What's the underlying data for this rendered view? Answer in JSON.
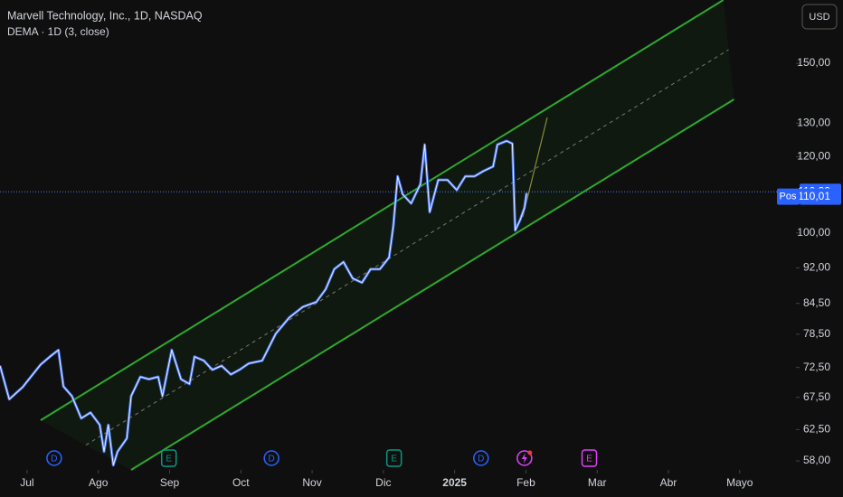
{
  "chart_data": {
    "type": "line",
    "title": "Marvell Technology, Inc., 1D, NASDAQ",
    "subtitle": "DEMA · 1D (3, close)",
    "currency": "USD",
    "color": "#4a7dff",
    "log_scale": true,
    "x": [
      6.62,
      6.75,
      6.94,
      7.19,
      7.32,
      7.44,
      7.51,
      7.63,
      7.76,
      7.89,
      8.02,
      8.08,
      8.14,
      8.21,
      8.27,
      8.4,
      8.46,
      8.59,
      8.71,
      8.84,
      8.9,
      9.03,
      9.16,
      9.28,
      9.35,
      9.48,
      9.6,
      9.73,
      9.86,
      9.98,
      10.11,
      10.3,
      10.49,
      10.68,
      10.87,
      11.06,
      11.19,
      11.31,
      11.44,
      11.57,
      11.7,
      11.82,
      11.95,
      12.08,
      12.14,
      12.2,
      12.27,
      12.39,
      12.52,
      12.58,
      12.65,
      12.77,
      12.9,
      13.03,
      13.15,
      13.28,
      13.41,
      13.54,
      13.6,
      13.73,
      13.81,
      13.85,
      13.92,
      13.98,
      14.01
    ],
    "values": [
      72.8,
      67.2,
      69.2,
      73.0,
      74.4,
      75.6,
      69.3,
      67.7,
      64.2,
      65.1,
      63.2,
      59.3,
      63.2,
      57.4,
      59.3,
      61.2,
      67.7,
      70.9,
      70.5,
      70.9,
      67.7,
      75.6,
      70.5,
      69.7,
      74.4,
      73.7,
      72.1,
      72.8,
      71.3,
      72.1,
      73.2,
      73.7,
      78.6,
      81.7,
      83.8,
      84.8,
      87.4,
      91.7,
      93.3,
      89.7,
      88.8,
      91.7,
      91.7,
      94.3,
      101.7,
      114.5,
      109.7,
      107.3,
      112.4,
      123.5,
      105.1,
      113.5,
      113.5,
      110.8,
      114.5,
      114.5,
      116.0,
      117.2,
      123.5,
      124.6,
      123.8,
      100.6,
      103.2,
      106.2,
      110.01
    ],
    "xlim": [
      6.62,
      17.79
    ],
    "ylim": [
      56.76,
      174.5
    ],
    "xticks": [
      {
        "value": 7,
        "label": "Jul"
      },
      {
        "value": 8,
        "label": "Ago"
      },
      {
        "value": 9,
        "label": "Sep"
      },
      {
        "value": 10,
        "label": "Oct"
      },
      {
        "value": 11,
        "label": "Nov"
      },
      {
        "value": 12,
        "label": "Dic"
      },
      {
        "value": 13,
        "label": "2025"
      },
      {
        "value": 14,
        "label": "Feb"
      },
      {
        "value": 15,
        "label": "Mar"
      },
      {
        "value": 16,
        "label": "Abr"
      },
      {
        "value": 17,
        "label": "Mayo"
      }
    ],
    "yticks": [
      {
        "value": 58,
        "label": "58,00"
      },
      {
        "value": 62.5,
        "label": "62,50"
      },
      {
        "value": 67.5,
        "label": "67,50"
      },
      {
        "value": 72.5,
        "label": "72,50"
      },
      {
        "value": 78.5,
        "label": "78,50"
      },
      {
        "value": 84.5,
        "label": "84,50"
      },
      {
        "value": 92,
        "label": "92,00"
      },
      {
        "value": 100,
        "label": "100,00"
      },
      {
        "value": 120,
        "label": "120,00"
      },
      {
        "value": 130,
        "label": "130,00"
      },
      {
        "value": 150,
        "label": "150,00"
      }
    ],
    "last_price": {
      "value": 110.33,
      "label": "110,33"
    },
    "indicator_price": {
      "value": 110.01,
      "label": "110,01",
      "tag": "Pos"
    },
    "channel": {
      "color": "#2ea82e",
      "upper": {
        "x": [
          7.19,
          16.77
        ],
        "values": [
          63.9,
          174.5
        ]
      },
      "lower": {
        "x": [
          8.46,
          16.92
        ],
        "values": [
          56.76,
          137.6
        ]
      }
    },
    "events": [
      {
        "x": 7.38,
        "label": "D",
        "color": "#2962ff"
      },
      {
        "x": 8.99,
        "label": "E",
        "color": "#089981"
      },
      {
        "x": 10.43,
        "label": "D",
        "color": "#2962ff"
      },
      {
        "x": 12.15,
        "label": "E",
        "color": "#089981"
      },
      {
        "x": 13.37,
        "label": "D",
        "color": "#2962ff"
      },
      {
        "x": 13.98,
        "color": "#e040fb"
      },
      {
        "x": 14.89,
        "label": "E",
        "color": "#e040fb"
      }
    ]
  }
}
